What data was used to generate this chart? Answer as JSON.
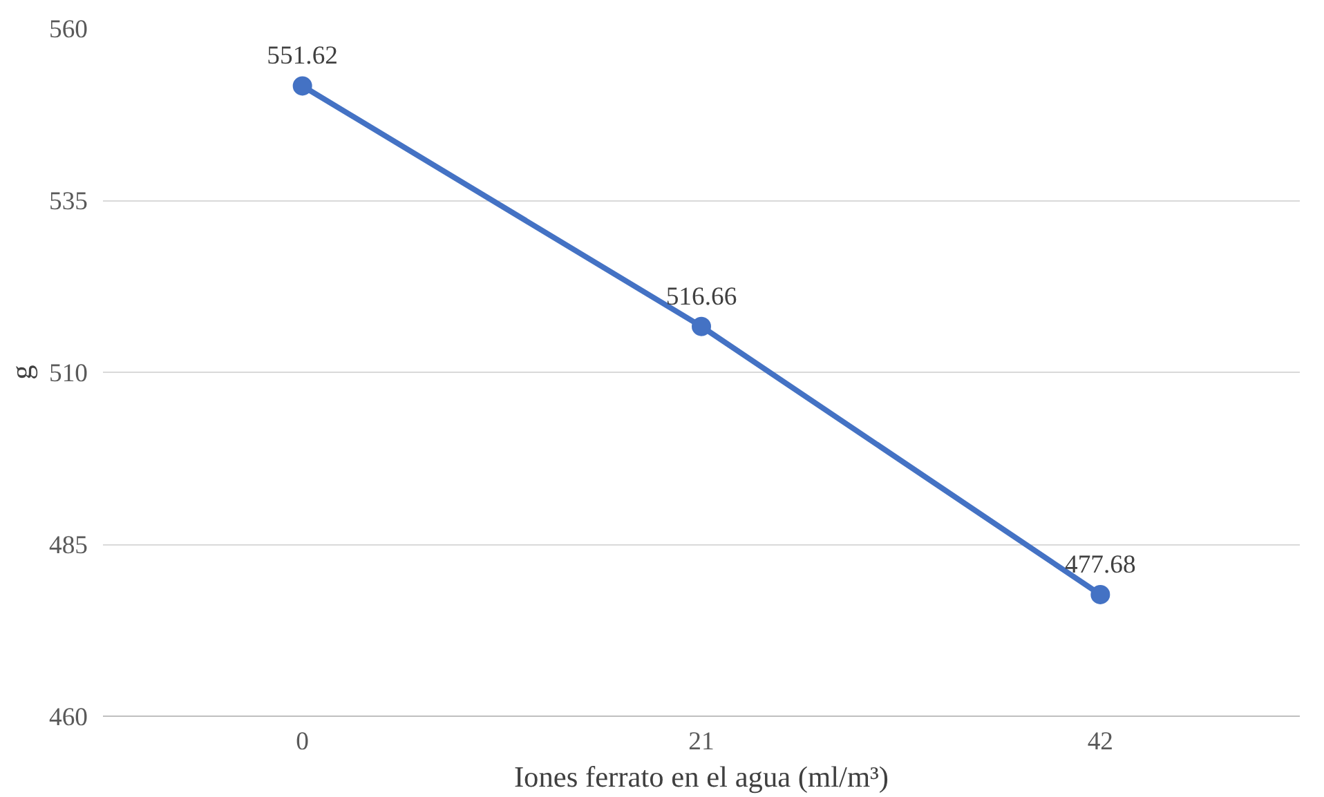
{
  "chart_data": {
    "type": "line",
    "xlabel": "Iones ferrato en el agua (ml/m³)",
    "ylabel": "g",
    "categories": [
      "0",
      "21",
      "42"
    ],
    "series": [
      {
        "color": "#4472c4",
        "values": [
          551.62,
          516.66,
          477.68
        ]
      }
    ],
    "ylim": [
      460,
      560
    ],
    "yticks": [
      460,
      485,
      510,
      535,
      560
    ],
    "grid": "y",
    "marker": "circle",
    "line_style": "solid",
    "data_labels": true
  }
}
